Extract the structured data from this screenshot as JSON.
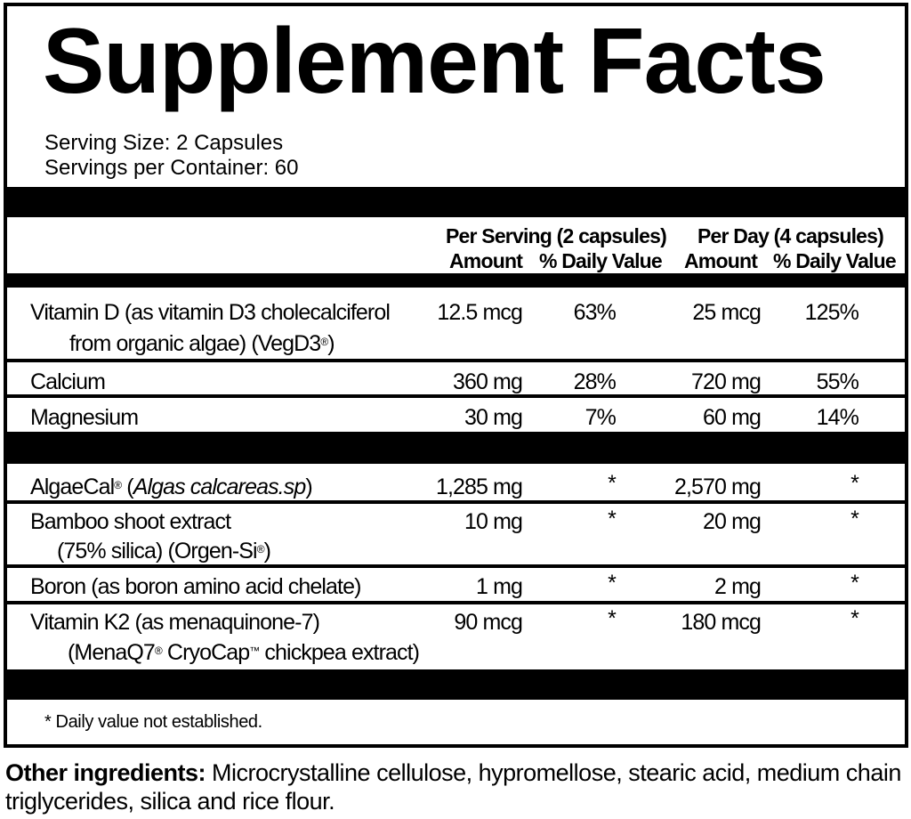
{
  "title": "Supplement Facts",
  "serving_size": "Serving Size: 2 Capsules",
  "servings_per_container": "Servings per Container: 60",
  "header": {
    "per_serving": "Per Serving (2 capsules)",
    "per_day": "Per Day (4 capsules)",
    "amount": "Amount",
    "dv": "% Daily Value"
  },
  "nutrients": [
    {
      "name": "Vitamin D",
      "detail": " (as vitamin D3 cholecalciferol",
      "line2": "from organic algae) (VegD3",
      "line2_mark": "®",
      "line2_end": ")",
      "amount": "12.5 mcg",
      "dv": "63%",
      "day_amount": "25 mcg",
      "day_dv": "125%"
    },
    {
      "name": "Calcium",
      "amount": "360 mg",
      "dv": "28%",
      "day_amount": "720 mg",
      "day_dv": "55%"
    },
    {
      "name": "Magnesium",
      "amount": "30 mg",
      "dv": "7%",
      "day_amount": "60 mg",
      "day_dv": "14%"
    }
  ],
  "others": [
    {
      "name": "AlgaeCal",
      "mark": "®",
      "italic": "Algas calcareas.sp",
      "amount": "1,285 mg",
      "dv": "*",
      "day_amount": "2,570 mg",
      "day_dv": "*"
    },
    {
      "name": "Bamboo shoot extract",
      "line2": "(75% silica) (Orgen-Si",
      "line2_mark": "®",
      "line2_end": ")",
      "amount": "10 mg",
      "dv": "*",
      "day_amount": "20 mg",
      "day_dv": "*"
    },
    {
      "name": "Boron (as boron amino acid chelate)",
      "amount": "1 mg",
      "dv": "*",
      "day_amount": "2 mg",
      "day_dv": "*"
    },
    {
      "name": "Vitamin K2 (as menaquinone-7)",
      "line2": "(MenaQ7",
      "line2_mark": "®",
      "line2_mid": " CryoCap",
      "line2_tm": "™",
      "line2_end": " chickpea extract)",
      "amount": "90 mcg",
      "dv": "*",
      "day_amount": "180 mcg",
      "day_dv": "*"
    }
  ],
  "footnote": "* Daily value not established.",
  "other_ingredients": {
    "label": "Other ingredients:",
    "text": " Microcrystalline cellulose, hypromellose, stearic acid, medium chain triglycerides, silica and rice flour."
  }
}
